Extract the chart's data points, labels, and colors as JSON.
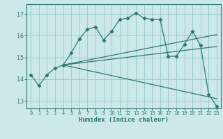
{
  "title": "",
  "xlabel": "Humidex (Indice chaleur)",
  "ylabel": "",
  "bg_color": "#cce8e8",
  "line_color": "#2d7a6e",
  "grid_color": "#a0cccc",
  "xlim": [
    -0.5,
    23.5
  ],
  "ylim": [
    12.65,
    17.45
  ],
  "yticks": [
    13,
    14,
    15,
    16,
    17
  ],
  "xticks": [
    0,
    1,
    2,
    3,
    4,
    5,
    6,
    7,
    8,
    9,
    10,
    11,
    12,
    13,
    14,
    15,
    16,
    17,
    18,
    19,
    20,
    21,
    22,
    23
  ],
  "line1_x": [
    0,
    1,
    2,
    3,
    4,
    5,
    6,
    7,
    8,
    9,
    10,
    11,
    12,
    13,
    14,
    15,
    16,
    17,
    18,
    19,
    20,
    21,
    22,
    23
  ],
  "line1_y": [
    14.2,
    13.7,
    14.2,
    14.5,
    14.65,
    15.2,
    15.85,
    16.3,
    16.4,
    15.8,
    16.2,
    16.75,
    16.8,
    17.05,
    16.8,
    16.75,
    16.75,
    15.05,
    15.05,
    15.6,
    16.2,
    15.55,
    13.3,
    12.75
  ],
  "line2_x": [
    4,
    23
  ],
  "line2_y": [
    14.65,
    16.05
  ],
  "line3_x": [
    4,
    23
  ],
  "line3_y": [
    14.65,
    13.1
  ],
  "line4_x": [
    4,
    23
  ],
  "line4_y": [
    14.65,
    15.5
  ]
}
